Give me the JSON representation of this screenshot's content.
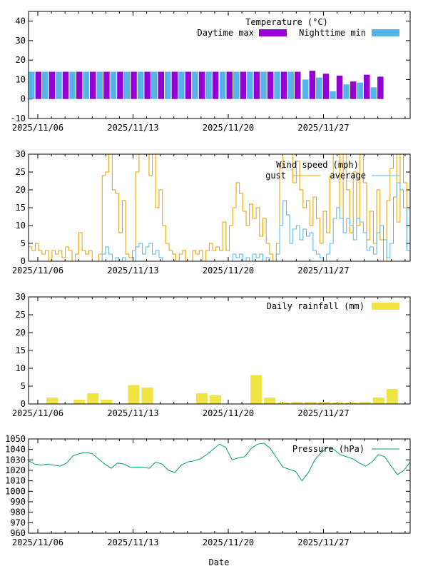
{
  "chart_data": [
    {
      "type": "bar",
      "title": "Temperature (°C)",
      "xlabel": "",
      "ylabel": "",
      "ylim": [
        -10,
        45
      ],
      "yticks": [
        -10,
        0,
        10,
        20,
        30,
        40
      ],
      "x_tick_labels": [
        "2025/11/06",
        "2025/11/13",
        "2025/11/20",
        "2025/11/27"
      ],
      "legend_placement": "top-right",
      "x_start": "2025/11/05 (partial)",
      "series": [
        {
          "name": "Daytime max",
          "color": "#9400d3",
          "values": [
            14,
            14,
            14,
            14,
            14,
            14,
            14,
            14,
            14,
            14,
            14,
            14,
            14,
            14,
            14,
            14,
            14,
            14,
            14,
            14,
            14.5,
            13,
            12,
            9,
            12.5,
            11.5
          ]
        },
        {
          "name": "Nighttime min",
          "color": "#56b4e9",
          "values": [
            14,
            14,
            14,
            14,
            14,
            14,
            14,
            14,
            14,
            14,
            14,
            14,
            14,
            14,
            14,
            14,
            14,
            14,
            14,
            14,
            10,
            11,
            4,
            7.5,
            8.5,
            6
          ]
        }
      ],
      "categories": [
        "11/05",
        "11/06",
        "11/07",
        "11/08",
        "11/09",
        "11/10",
        "11/11",
        "11/12",
        "11/13",
        "11/14",
        "11/15",
        "11/16",
        "11/17",
        "11/18",
        "11/19",
        "11/20",
        "11/21",
        "11/22",
        "11/23",
        "11/24",
        "11/27",
        "11/28",
        "11/29",
        "11/30",
        "12/01",
        "12/02"
      ]
    },
    {
      "type": "line",
      "title": "Wind speed (mph)",
      "ylim": [
        0,
        30
      ],
      "yticks": [
        0,
        5,
        10,
        15,
        20,
        25,
        30
      ],
      "x_tick_labels": [
        "2025/11/06",
        "2025/11/13",
        "2025/11/20",
        "2025/11/27"
      ],
      "legend_placement": "top-right",
      "x_day_range": [
        -0.68,
        27.38
      ],
      "series": [
        {
          "name": "gust",
          "color": "#e69f00",
          "values": [
            4,
            3,
            5,
            3,
            2,
            3,
            0,
            3,
            2,
            3,
            1,
            4,
            3,
            0,
            2,
            8,
            3,
            2,
            3,
            0,
            0,
            2,
            24,
            25,
            30,
            20,
            19,
            8,
            17,
            2,
            1,
            3,
            25,
            30,
            30,
            30,
            24,
            30,
            15,
            20,
            10,
            5,
            3,
            2,
            0,
            2,
            3,
            0,
            0,
            3,
            2,
            3,
            0,
            3,
            5,
            3,
            4,
            3,
            11,
            3,
            10,
            15,
            22,
            19,
            14,
            10,
            16,
            12,
            15,
            7,
            12,
            5,
            2,
            0,
            5,
            26,
            30,
            30,
            30,
            22,
            28,
            20,
            15,
            17,
            10,
            18,
            12,
            5,
            14,
            8,
            24,
            30,
            30,
            12,
            30,
            20,
            8,
            25,
            10,
            30,
            22,
            6,
            14,
            5,
            20,
            6,
            0,
            17,
            26,
            30,
            11,
            30,
            22,
            3,
            0
          ]
        },
        {
          "name": "average",
          "color": "#56b4e9",
          "values": [
            0,
            0,
            0,
            0,
            0,
            0,
            0,
            0,
            0,
            0,
            0,
            0,
            0,
            0,
            0,
            0,
            0,
            0,
            0,
            0,
            0,
            0,
            2,
            4,
            2,
            0,
            1,
            0,
            1,
            0,
            0,
            0,
            4,
            5,
            2,
            4,
            5,
            2,
            3,
            1,
            0,
            0,
            0,
            0,
            0,
            0,
            0,
            0,
            0,
            0,
            0,
            0,
            0,
            0,
            0,
            0,
            0,
            0,
            0,
            0,
            0,
            2,
            1,
            2,
            0,
            1,
            0,
            2,
            1,
            2,
            0,
            1,
            0,
            0,
            2,
            10,
            17,
            13,
            5,
            9,
            10,
            6,
            9,
            7,
            8,
            3,
            2,
            1,
            0,
            2,
            5,
            12,
            15,
            12,
            8,
            12,
            10,
            6,
            12,
            11,
            8,
            3,
            4,
            2,
            8,
            10,
            6,
            1,
            5,
            18,
            22,
            20,
            15,
            3,
            0
          ]
        }
      ]
    },
    {
      "type": "bar",
      "title": "Daily rainfall (mm)",
      "ylim": [
        0,
        30
      ],
      "yticks": [
        0,
        5,
        10,
        15,
        20,
        25,
        30
      ],
      "x_tick_labels": [
        "2025/11/06",
        "2025/11/13",
        "2025/11/20",
        "2025/11/27"
      ],
      "legend_placement": "top-right",
      "color": "#f0e442",
      "categories": [
        "11/07",
        "11/09",
        "11/10",
        "11/11",
        "11/13",
        "11/14",
        "11/18",
        "11/19",
        "11/22",
        "11/23",
        "11/24",
        "11/25",
        "11/26",
        "11/27",
        "11/28",
        "11/29",
        "11/30",
        "12/01",
        "12/02"
      ],
      "values": [
        1.8,
        1.2,
        3.0,
        1.2,
        5.3,
        4.6,
        3.0,
        2.4,
        8.1,
        1.8,
        0.4,
        0.6,
        0.6,
        0.6,
        0.4,
        0.4,
        0.6,
        1.8,
        4.2
      ]
    },
    {
      "type": "line",
      "title": "Pressure (hPa)",
      "xlabel": "Date",
      "ylim": [
        960,
        1050
      ],
      "yticks": [
        960,
        970,
        980,
        990,
        1000,
        1010,
        1020,
        1030,
        1040,
        1050
      ],
      "x_tick_labels": [
        "2025/11/06",
        "2025/11/13",
        "2025/11/20",
        "2025/11/27"
      ],
      "legend_placement": "top-right",
      "x_day_range": [
        -0.68,
        27.38
      ],
      "series": [
        {
          "name": "Pressure (hPa)",
          "color": "#009e73",
          "values": [
            1029,
            1026,
            1025,
            1026,
            1025,
            1024,
            1027,
            1034,
            1036,
            1037,
            1036,
            1031,
            1026,
            1022,
            1027,
            1026,
            1023,
            1023,
            1023,
            1022,
            1028,
            1026,
            1020,
            1018,
            1025,
            1028,
            1029,
            1031,
            1035,
            1040,
            1045,
            1042,
            1030,
            1032,
            1033,
            1041,
            1045,
            1046,
            1041,
            1032,
            1023,
            1021,
            1019,
            1010,
            1018,
            1030,
            1037,
            1042,
            1040,
            1035,
            1033,
            1031,
            1027,
            1024,
            1028,
            1035,
            1033,
            1024,
            1016,
            1020,
            1028
          ]
        }
      ]
    }
  ]
}
